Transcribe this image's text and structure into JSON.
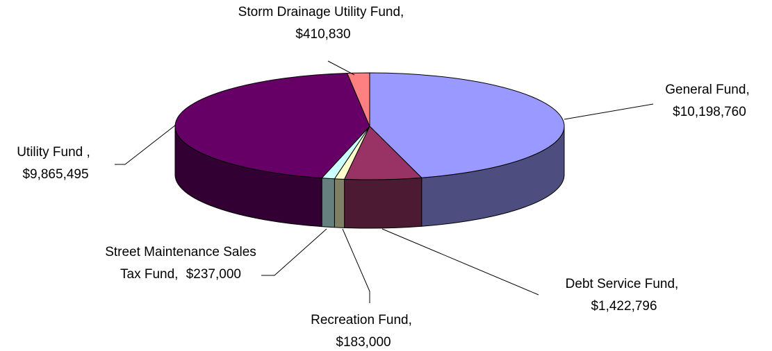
{
  "chart_data": {
    "type": "pie3d",
    "categories": [
      "General Fund,",
      "Debt Service Fund,",
      "Recreation Fund,",
      "Street Maintenance Sales Tax Fund,",
      "Utility Fund ,",
      "Storm Drainage Utility Fund,"
    ],
    "values": [
      10198760,
      1422796,
      183000,
      237000,
      9865495,
      410830
    ],
    "value_labels": [
      "$10,198,760",
      "$1,422,796",
      "$183,000",
      "$237,000",
      "$9,865,495",
      "$410,830"
    ],
    "colors": [
      "#9999ff",
      "#993366",
      "#ffffcc",
      "#ccffff",
      "#660066",
      "#ff8080"
    ]
  }
}
